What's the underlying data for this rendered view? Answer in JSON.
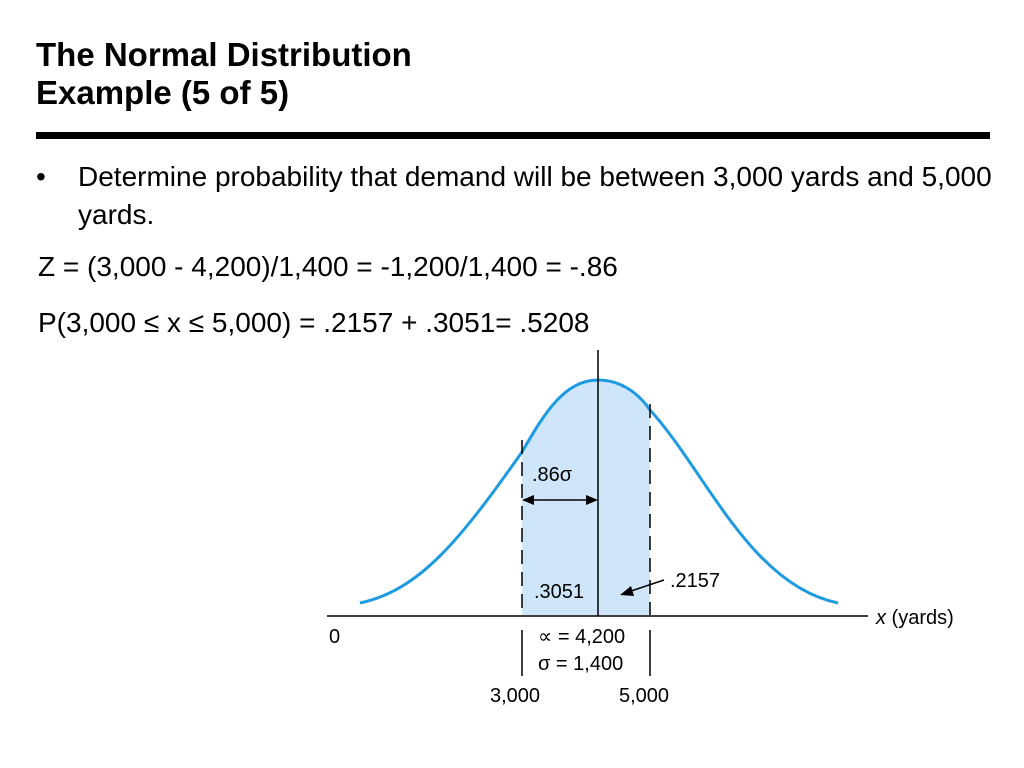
{
  "title": {
    "line1": "The Normal Distribution",
    "line2": "Example (5 of 5)"
  },
  "bullet": {
    "marker": "•",
    "text": "Determine probability that demand will be between 3,000 yards and 5,000 yards."
  },
  "equations": [
    "Z = (3,000 - 4,200)/1,400 = -1,200/1,400 = -.86",
    "P(3,000 ≤ x ≤ 5,000) = .2157 + .3051= .5208"
  ],
  "diagram": {
    "axis_label_var": "x",
    "axis_label_unit": " (yards)",
    "zero_label": "0",
    "sigma_span_label": ".86σ",
    "left_area_label": ".3051",
    "right_area_label": ".2157",
    "mean_label": "∝ = 4,200",
    "sd_label": "σ = 1,400",
    "low_x_label": "3,000",
    "high_x_label": "5,000",
    "colors": {
      "curve": "#1e9be0",
      "fill": "#cfe6fa"
    }
  }
}
